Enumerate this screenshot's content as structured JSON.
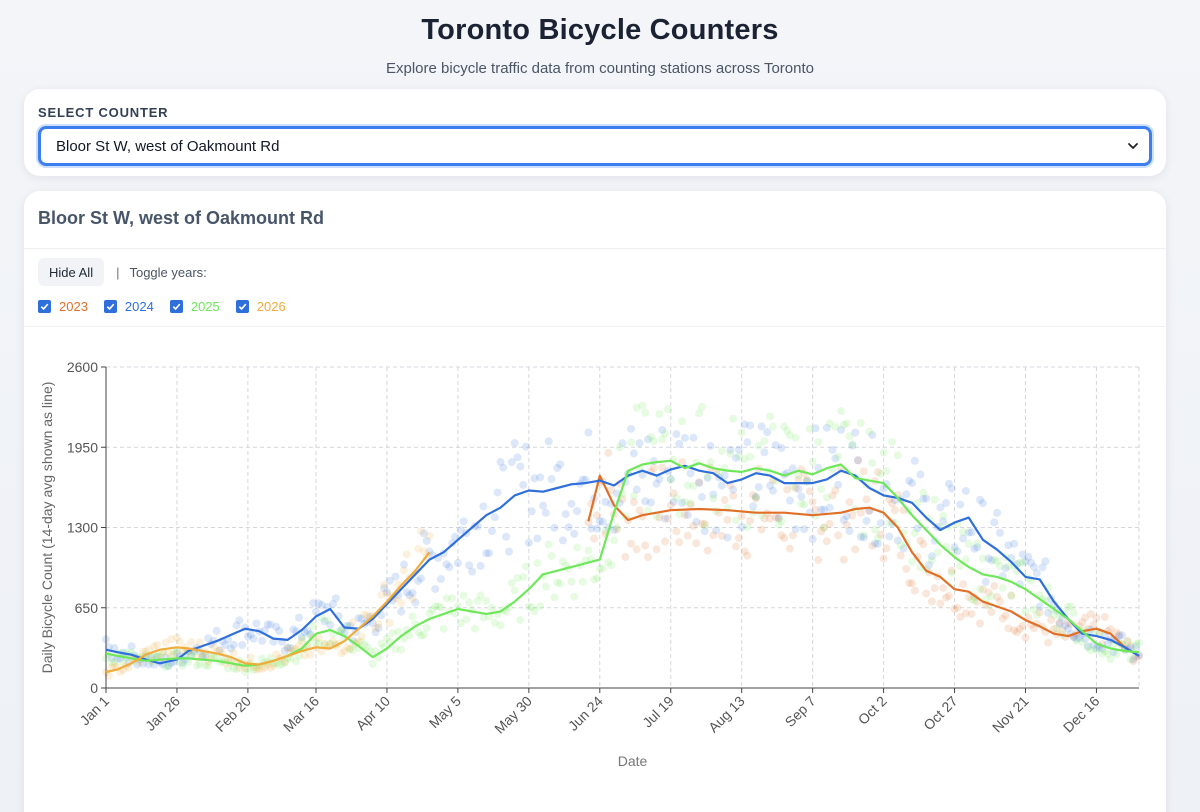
{
  "header": {
    "title": "Toronto Bicycle Counters",
    "subtitle": "Explore bicycle traffic data from counting stations across Toronto"
  },
  "selector": {
    "label": "SELECT COUNTER",
    "selected": "Bloor St W, west of Oakmount Rd"
  },
  "panel": {
    "title": "Bloor St W, west of Oakmount Rd",
    "hide_all_label": "Hide All",
    "separator": "|",
    "toggle_label": "Toggle years:",
    "years": [
      {
        "label": "2023",
        "color": "#e07028",
        "checked": true
      },
      {
        "label": "2024",
        "color": "#2f6fdc",
        "checked": true
      },
      {
        "label": "2025",
        "color": "#6ee85a",
        "checked": true
      },
      {
        "label": "2026",
        "color": "#f0ac3c",
        "checked": true
      }
    ]
  },
  "chart_data": {
    "type": "line",
    "xlabel": "Date",
    "ylabel": "Daily Bicycle Count (14-day avg shown as line)",
    "ylim": [
      0,
      2600
    ],
    "yticks": [
      "0",
      "650",
      "1300",
      "1950",
      "2600"
    ],
    "xlim_day_of_year": [
      1,
      365
    ],
    "xticks": [
      {
        "label": "Jan 1",
        "day": 1
      },
      {
        "label": "Jan 26",
        "day": 26
      },
      {
        "label": "Feb 20",
        "day": 51
      },
      {
        "label": "Mar 16",
        "day": 75
      },
      {
        "label": "Apr 10",
        "day": 100
      },
      {
        "label": "May 5",
        "day": 125
      },
      {
        "label": "May 30",
        "day": 150
      },
      {
        "label": "Jun 24",
        "day": 175
      },
      {
        "label": "Jul 19",
        "day": 200
      },
      {
        "label": "Aug 13",
        "day": 225
      },
      {
        "label": "Sep 7",
        "day": 250
      },
      {
        "label": "Oct 2",
        "day": 275
      },
      {
        "label": "Oct 27",
        "day": 300
      },
      {
        "label": "Nov 21",
        "day": 325
      },
      {
        "label": "Dec 16",
        "day": 350
      }
    ],
    "grid": true,
    "series": [
      {
        "name": "2023",
        "color": "#e07028",
        "x_day": [
          171,
          175,
          180,
          185,
          190,
          195,
          200,
          210,
          220,
          230,
          240,
          250,
          260,
          265,
          270,
          275,
          280,
          285,
          290,
          295,
          300,
          305,
          310,
          315,
          320,
          325,
          330,
          335,
          340,
          345,
          350,
          355,
          360,
          365
        ],
        "y": [
          1350,
          1720,
          1480,
          1360,
          1400,
          1420,
          1440,
          1450,
          1440,
          1420,
          1420,
          1400,
          1420,
          1450,
          1460,
          1420,
          1300,
          1100,
          950,
          900,
          800,
          780,
          700,
          660,
          620,
          550,
          500,
          440,
          420,
          460,
          480,
          440,
          330,
          260
        ]
      },
      {
        "name": "2024",
        "color": "#2f6fdc",
        "x_day": [
          1,
          5,
          10,
          15,
          20,
          26,
          30,
          35,
          40,
          45,
          50,
          55,
          60,
          65,
          70,
          75,
          80,
          85,
          90,
          95,
          100,
          105,
          110,
          115,
          120,
          125,
          130,
          135,
          140,
          145,
          150,
          155,
          160,
          165,
          170,
          175,
          180,
          185,
          190,
          195,
          200,
          205,
          210,
          215,
          220,
          225,
          230,
          235,
          240,
          245,
          250,
          255,
          260,
          265,
          270,
          275,
          280,
          285,
          290,
          295,
          300,
          305,
          310,
          315,
          320,
          325,
          330,
          335,
          340,
          345,
          350,
          355,
          360,
          365
        ],
        "y": [
          310,
          290,
          270,
          230,
          200,
          230,
          300,
          340,
          380,
          430,
          480,
          460,
          400,
          390,
          470,
          580,
          640,
          490,
          480,
          560,
          680,
          800,
          920,
          1040,
          1100,
          1200,
          1300,
          1400,
          1460,
          1560,
          1600,
          1590,
          1620,
          1650,
          1660,
          1680,
          1640,
          1720,
          1760,
          1720,
          1770,
          1800,
          1760,
          1740,
          1660,
          1690,
          1740,
          1720,
          1660,
          1660,
          1660,
          1690,
          1760,
          1720,
          1620,
          1560,
          1540,
          1500,
          1380,
          1280,
          1340,
          1380,
          1200,
          1120,
          1020,
          900,
          880,
          700,
          560,
          440,
          420,
          390,
          330,
          260
        ]
      },
      {
        "name": "2025",
        "color": "#6ee85a",
        "x_day": [
          1,
          5,
          10,
          15,
          20,
          26,
          30,
          35,
          40,
          45,
          50,
          55,
          60,
          65,
          70,
          75,
          80,
          85,
          90,
          95,
          100,
          105,
          110,
          115,
          120,
          125,
          130,
          135,
          140,
          145,
          150,
          155,
          175,
          180,
          185,
          190,
          195,
          200,
          205,
          210,
          215,
          220,
          225,
          230,
          235,
          240,
          245,
          250,
          255,
          260,
          265,
          270,
          275,
          280,
          285,
          290,
          295,
          300,
          305,
          310,
          315,
          320,
          325,
          330,
          335,
          340,
          345,
          350,
          355,
          360,
          365
        ],
        "y": [
          280,
          260,
          240,
          220,
          230,
          240,
          240,
          230,
          220,
          200,
          180,
          190,
          220,
          260,
          320,
          440,
          470,
          420,
          340,
          250,
          320,
          420,
          500,
          560,
          600,
          640,
          620,
          600,
          620,
          700,
          800,
          920,
          1040,
          1420,
          1760,
          1810,
          1830,
          1840,
          1780,
          1820,
          1780,
          1760,
          1750,
          1780,
          1760,
          1720,
          1760,
          1730,
          1780,
          1810,
          1700,
          1680,
          1660,
          1540,
          1400,
          1280,
          1160,
          1060,
          980,
          920,
          900,
          860,
          800,
          720,
          640,
          560,
          460,
          360,
          320,
          300,
          290
        ]
      },
      {
        "name": "2026",
        "color": "#f0ac3c",
        "x_day": [
          1,
          5,
          10,
          15,
          20,
          26,
          30,
          35,
          40,
          45,
          50,
          55,
          60,
          65,
          70,
          75,
          80,
          85,
          90,
          95,
          100,
          105,
          110,
          115
        ],
        "y": [
          130,
          150,
          200,
          270,
          310,
          330,
          320,
          300,
          280,
          250,
          200,
          190,
          220,
          260,
          300,
          330,
          320,
          380,
          480,
          580,
          700,
          830,
          950,
          1100
        ]
      }
    ],
    "scatter": "daily counts shown as faint dots in each year's color"
  }
}
